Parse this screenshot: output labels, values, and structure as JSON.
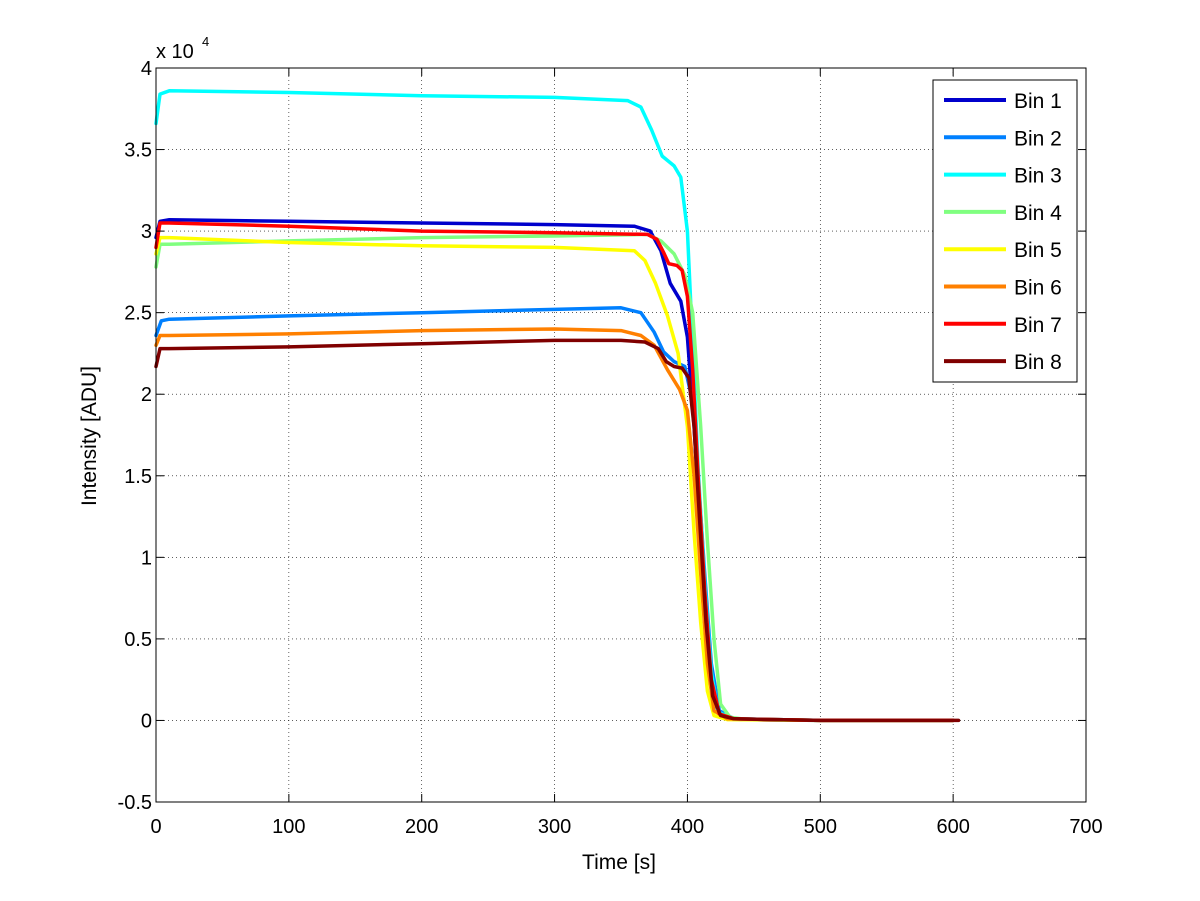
{
  "chart_data": {
    "type": "line",
    "xlabel": "Time [s]",
    "ylabel": "Intensity [ADU]",
    "y_multiplier_label": "x 10",
    "y_multiplier_exponent": "4",
    "xlim": [
      0,
      700
    ],
    "ylim": [
      -0.5,
      4
    ],
    "x_ticks": [
      0,
      100,
      200,
      300,
      400,
      500,
      600,
      700
    ],
    "x_tick_labels": [
      "0",
      "100",
      "200",
      "300",
      "400",
      "500",
      "600",
      "700"
    ],
    "y_ticks": [
      -0.5,
      0,
      0.5,
      1,
      1.5,
      2,
      2.5,
      3,
      3.5,
      4
    ],
    "y_tick_labels": [
      "-0.5",
      "0",
      "0.5",
      "1",
      "1.5",
      "2",
      "2.5",
      "3",
      "3.5",
      "4"
    ],
    "grid": true,
    "legend_position": "top-right",
    "series": [
      {
        "name": "Bin 1",
        "color": "#0000cc",
        "points": [
          [
            0,
            2.96
          ],
          [
            3,
            3.06
          ],
          [
            10,
            3.07
          ],
          [
            100,
            3.06
          ],
          [
            200,
            3.05
          ],
          [
            300,
            3.04
          ],
          [
            360,
            3.03
          ],
          [
            372,
            3.0
          ],
          [
            380,
            2.88
          ],
          [
            387,
            2.68
          ],
          [
            395,
            2.57
          ],
          [
            400,
            2.35
          ],
          [
            405,
            1.8
          ],
          [
            410,
            1.1
          ],
          [
            415,
            0.45
          ],
          [
            420,
            0.1
          ],
          [
            428,
            0.02
          ],
          [
            440,
            0.005
          ],
          [
            500,
            0.0
          ],
          [
            600,
            0.0
          ]
        ]
      },
      {
        "name": "Bin 2",
        "color": "#0080ff",
        "points": [
          [
            0,
            2.36
          ],
          [
            4,
            2.45
          ],
          [
            10,
            2.46
          ],
          [
            100,
            2.48
          ],
          [
            200,
            2.5
          ],
          [
            300,
            2.52
          ],
          [
            350,
            2.53
          ],
          [
            365,
            2.5
          ],
          [
            375,
            2.38
          ],
          [
            382,
            2.26
          ],
          [
            390,
            2.2
          ],
          [
            398,
            2.17
          ],
          [
            404,
            1.95
          ],
          [
            408,
            1.5
          ],
          [
            413,
            0.9
          ],
          [
            418,
            0.35
          ],
          [
            424,
            0.06
          ],
          [
            435,
            0.01
          ],
          [
            500,
            0.0
          ],
          [
            600,
            0.0
          ]
        ]
      },
      {
        "name": "Bin 3",
        "color": "#00ffff",
        "points": [
          [
            0,
            3.66
          ],
          [
            3,
            3.84
          ],
          [
            10,
            3.86
          ],
          [
            100,
            3.85
          ],
          [
            200,
            3.83
          ],
          [
            300,
            3.82
          ],
          [
            355,
            3.8
          ],
          [
            365,
            3.76
          ],
          [
            373,
            3.62
          ],
          [
            381,
            3.46
          ],
          [
            390,
            3.4
          ],
          [
            395,
            3.33
          ],
          [
            400,
            3.0
          ],
          [
            404,
            2.3
          ],
          [
            408,
            1.55
          ],
          [
            413,
            0.85
          ],
          [
            418,
            0.3
          ],
          [
            423,
            0.05
          ],
          [
            435,
            0.01
          ],
          [
            500,
            0.0
          ],
          [
            600,
            0.0
          ]
        ]
      },
      {
        "name": "Bin 4",
        "color": "#80ff80",
        "points": [
          [
            0,
            2.78
          ],
          [
            3,
            2.92
          ],
          [
            10,
            2.92
          ],
          [
            100,
            2.94
          ],
          [
            200,
            2.96
          ],
          [
            300,
            2.97
          ],
          [
            370,
            2.98
          ],
          [
            380,
            2.94
          ],
          [
            390,
            2.86
          ],
          [
            398,
            2.73
          ],
          [
            404,
            2.5
          ],
          [
            410,
            1.8
          ],
          [
            415,
            1.1
          ],
          [
            420,
            0.5
          ],
          [
            425,
            0.1
          ],
          [
            432,
            0.02
          ],
          [
            445,
            0.005
          ],
          [
            500,
            0.0
          ],
          [
            600,
            0.0
          ]
        ]
      },
      {
        "name": "Bin 5",
        "color": "#ffff00",
        "points": [
          [
            0,
            2.86
          ],
          [
            3,
            2.96
          ],
          [
            10,
            2.96
          ],
          [
            100,
            2.93
          ],
          [
            200,
            2.91
          ],
          [
            300,
            2.9
          ],
          [
            360,
            2.88
          ],
          [
            368,
            2.82
          ],
          [
            376,
            2.68
          ],
          [
            385,
            2.48
          ],
          [
            393,
            2.25
          ],
          [
            400,
            1.8
          ],
          [
            405,
            1.15
          ],
          [
            410,
            0.6
          ],
          [
            415,
            0.18
          ],
          [
            420,
            0.03
          ],
          [
            430,
            0.005
          ],
          [
            500,
            0.0
          ],
          [
            600,
            0.0
          ]
        ]
      },
      {
        "name": "Bin 6",
        "color": "#ff8000",
        "points": [
          [
            0,
            2.3
          ],
          [
            3,
            2.36
          ],
          [
            10,
            2.36
          ],
          [
            100,
            2.37
          ],
          [
            200,
            2.39
          ],
          [
            300,
            2.4
          ],
          [
            350,
            2.39
          ],
          [
            365,
            2.36
          ],
          [
            375,
            2.3
          ],
          [
            385,
            2.15
          ],
          [
            394,
            2.03
          ],
          [
            400,
            1.9
          ],
          [
            405,
            1.5
          ],
          [
            410,
            0.9
          ],
          [
            415,
            0.35
          ],
          [
            420,
            0.06
          ],
          [
            430,
            0.01
          ],
          [
            500,
            0.0
          ],
          [
            600,
            0.0
          ]
        ]
      },
      {
        "name": "Bin 7",
        "color": "#ff0000",
        "points": [
          [
            0,
            2.9
          ],
          [
            3,
            3.05
          ],
          [
            10,
            3.05
          ],
          [
            100,
            3.03
          ],
          [
            200,
            3.0
          ],
          [
            300,
            2.99
          ],
          [
            370,
            2.98
          ],
          [
            377,
            2.95
          ],
          [
            382,
            2.87
          ],
          [
            386,
            2.8
          ],
          [
            392,
            2.79
          ],
          [
            396,
            2.76
          ],
          [
            400,
            2.6
          ],
          [
            404,
            2.15
          ],
          [
            408,
            1.5
          ],
          [
            413,
            0.8
          ],
          [
            418,
            0.25
          ],
          [
            424,
            0.04
          ],
          [
            435,
            0.01
          ],
          [
            500,
            0.0
          ],
          [
            600,
            0.0
          ]
        ]
      },
      {
        "name": "Bin 8",
        "color": "#800000",
        "points": [
          [
            0,
            2.17
          ],
          [
            3,
            2.28
          ],
          [
            10,
            2.28
          ],
          [
            100,
            2.29
          ],
          [
            200,
            2.31
          ],
          [
            300,
            2.33
          ],
          [
            350,
            2.33
          ],
          [
            368,
            2.32
          ],
          [
            378,
            2.28
          ],
          [
            384,
            2.2
          ],
          [
            390,
            2.17
          ],
          [
            396,
            2.16
          ],
          [
            401,
            2.1
          ],
          [
            405,
            1.8
          ],
          [
            409,
            1.25
          ],
          [
            414,
            0.6
          ],
          [
            419,
            0.15
          ],
          [
            425,
            0.03
          ],
          [
            435,
            0.01
          ],
          [
            500,
            0.0
          ],
          [
            604,
            0.0
          ]
        ]
      }
    ]
  }
}
